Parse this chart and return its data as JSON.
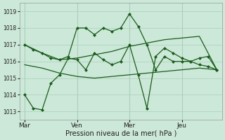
{
  "background_color": "#cce8d8",
  "grid_color": "#aacfbb",
  "line_color": "#1a5c1a",
  "marker_color": "#1a5c1a",
  "xlabel": "Pression niveau de la mer( hPa )",
  "ylim": [
    1012.5,
    1019.5
  ],
  "yticks": [
    1013,
    1014,
    1015,
    1016,
    1017,
    1018,
    1019
  ],
  "xtick_labels": [
    "Mar",
    "Ven",
    "Mer",
    "Jeu"
  ],
  "xtick_positions": [
    0,
    3,
    6,
    9
  ],
  "figsize": [
    3.2,
    2.0
  ],
  "dpi": 100,
  "series1_x": [
    0,
    0.5,
    1,
    1.5,
    2,
    2.5,
    3,
    3.5,
    4,
    4.5,
    5,
    5.5,
    6,
    6.5,
    7,
    7.5,
    8,
    8.5,
    9,
    9.5,
    10,
    10.5,
    11
  ],
  "series1_y": [
    1017.0,
    1016.7,
    1016.5,
    1016.2,
    1016.1,
    1016.3,
    1018.0,
    1018.0,
    1017.6,
    1018.0,
    1017.8,
    1018.0,
    1018.85,
    1018.1,
    1017.0,
    1015.5,
    1016.3,
    1016.0,
    1016.0,
    1016.0,
    1016.2,
    1016.3,
    1015.5
  ],
  "series2_x": [
    0,
    1,
    2,
    3,
    4,
    5,
    6,
    7,
    8,
    9,
    10,
    11
  ],
  "series2_y": [
    1017.0,
    1016.5,
    1016.1,
    1016.2,
    1016.4,
    1016.6,
    1016.9,
    1017.1,
    1017.3,
    1017.4,
    1017.5,
    1015.5
  ],
  "series3_x": [
    0,
    0.5,
    1,
    1.5,
    2,
    2.5,
    3,
    3.5,
    4,
    4.5,
    5,
    5.5,
    6,
    6.5,
    7,
    7.5,
    8,
    8.5,
    9,
    9.5,
    10,
    10.5,
    11
  ],
  "series3_y": [
    1014.0,
    1013.2,
    1013.1,
    1014.7,
    1015.2,
    1016.2,
    1016.1,
    1015.5,
    1016.5,
    1016.1,
    1015.8,
    1016.0,
    1017.0,
    1015.2,
    1013.2,
    1016.3,
    1016.8,
    1016.5,
    1016.2,
    1016.0,
    1015.8,
    1015.7,
    1015.5
  ],
  "series4_x": [
    0,
    1,
    2,
    3,
    4,
    5,
    6,
    7,
    8,
    9,
    10,
    11
  ],
  "series4_y": [
    1015.8,
    1015.6,
    1015.3,
    1015.1,
    1015.0,
    1015.1,
    1015.2,
    1015.3,
    1015.4,
    1015.5,
    1015.6,
    1015.5
  ]
}
